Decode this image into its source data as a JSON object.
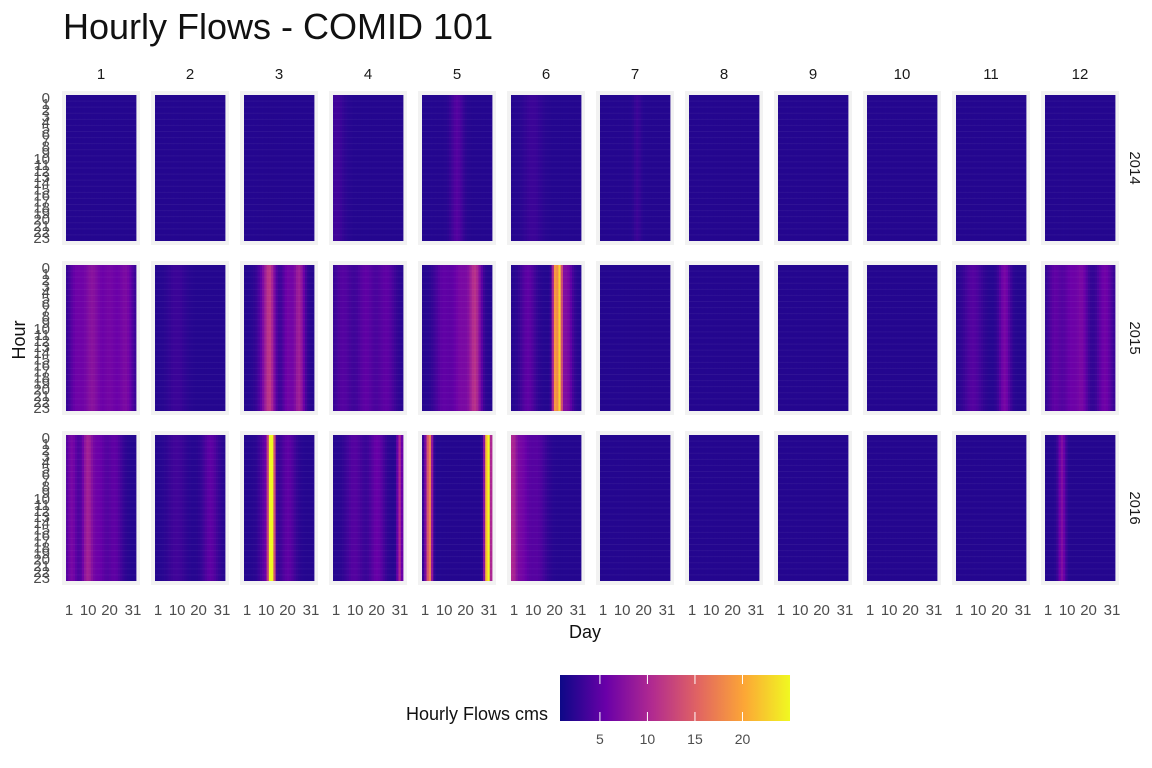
{
  "chart_data": {
    "type": "heatmap",
    "title": "Hourly Flows - COMID 101",
    "xlabel": "Day",
    "ylabel": "Hour",
    "facet_columns": [
      "1",
      "2",
      "3",
      "4",
      "5",
      "6",
      "7",
      "8",
      "9",
      "10",
      "11",
      "12"
    ],
    "facet_rows": [
      "2014",
      "2015",
      "2016"
    ],
    "x_ticks": [
      "1",
      "10",
      "20",
      "31"
    ],
    "x_range": [
      1,
      31
    ],
    "y_ticks": [
      "0",
      "1",
      "2",
      "3",
      "4",
      "5",
      "6",
      "7",
      "8",
      "9",
      "10",
      "11",
      "12",
      "13",
      "14",
      "15",
      "16",
      "17",
      "18",
      "19",
      "20",
      "21",
      "22",
      "23"
    ],
    "y_range": [
      0,
      23
    ],
    "legend_title": "Hourly Flows cms",
    "legend_ticks": [
      5,
      10,
      15,
      20
    ],
    "color_range": [
      0.8,
      25
    ],
    "colormap": [
      "#0d0887",
      "#6a00a8",
      "#b12a90",
      "#e16462",
      "#fca636",
      "#f0f921"
    ],
    "baseline_flow": 2.0,
    "cells": [
      {
        "year": "2014",
        "month": "4",
        "peaks": [
          [
            2,
            3.5,
            2.5
          ]
        ]
      },
      {
        "year": "2014",
        "month": "5",
        "peaks": [
          [
            16,
            4.5,
            2.0
          ]
        ]
      },
      {
        "year": "2014",
        "month": "6",
        "peaks": [
          [
            10,
            3.2,
            3.0
          ]
        ]
      },
      {
        "year": "2014",
        "month": "7",
        "peaks": [
          [
            17,
            3.2,
            1.2
          ]
        ]
      },
      {
        "year": "2015",
        "month": "1",
        "peaks": [
          [
            5,
            5.5,
            2.5
          ],
          [
            12,
            7.5,
            3.0
          ],
          [
            20,
            6.0,
            3.0
          ],
          [
            27,
            6.5,
            2.5
          ]
        ]
      },
      {
        "year": "2015",
        "month": "2",
        "peaks": [
          [
            10,
            3.2,
            3.0
          ]
        ]
      },
      {
        "year": "2015",
        "month": "3",
        "peaks": [
          [
            10,
            5.5,
            2.5
          ],
          [
            12,
            9.0,
            1.8
          ],
          [
            20,
            6.0,
            2.0
          ],
          [
            25,
            9.0,
            1.8
          ]
        ]
      },
      {
        "year": "2015",
        "month": "4",
        "peaks": [
          [
            5,
            4.5,
            3.0
          ],
          [
            15,
            5.0,
            3.0
          ],
          [
            24,
            5.0,
            3.0
          ]
        ]
      },
      {
        "year": "2015",
        "month": "5",
        "peaks": [
          [
            10,
            5.0,
            3.0
          ],
          [
            18,
            6.5,
            3.0
          ],
          [
            24,
            10.5,
            2.0
          ]
        ]
      },
      {
        "year": "2015",
        "month": "6",
        "peaks": [
          [
            8,
            5.0,
            2.5
          ],
          [
            20,
            18.0,
            0.8
          ],
          [
            22,
            20.0,
            0.8
          ],
          [
            25,
            7.0,
            2.0
          ]
        ]
      },
      {
        "year": "2015",
        "month": "11",
        "peaks": [
          [
            8,
            4.5,
            3.0
          ],
          [
            22,
            6.5,
            1.8
          ]
        ]
      },
      {
        "year": "2015",
        "month": "12",
        "peaks": [
          [
            5,
            5.0,
            2.5
          ],
          [
            12,
            5.5,
            2.5
          ],
          [
            17,
            6.0,
            2.0
          ],
          [
            27,
            6.0,
            2.5
          ]
        ]
      },
      {
        "year": "2016",
        "month": "1",
        "peaks": [
          [
            3,
            6.5,
            2.0
          ],
          [
            10,
            9.0,
            1.8
          ],
          [
            15,
            5.5,
            2.5
          ],
          [
            22,
            5.0,
            2.5
          ]
        ]
      },
      {
        "year": "2016",
        "month": "2",
        "peaks": [
          [
            10,
            3.5,
            3.0
          ],
          [
            25,
            5.0,
            2.5
          ]
        ]
      },
      {
        "year": "2016",
        "month": "3",
        "peaks": [
          [
            12,
            16.0,
            0.8
          ],
          [
            13,
            24.0,
            0.8
          ],
          [
            10,
            5.0,
            2.0
          ],
          [
            20,
            5.0,
            2.5
          ]
        ]
      },
      {
        "year": "2016",
        "month": "4",
        "peaks": [
          [
            10,
            4.5,
            3.0
          ],
          [
            20,
            5.5,
            2.5
          ],
          [
            30,
            10.0,
            0.8
          ]
        ]
      },
      {
        "year": "2016",
        "month": "5",
        "peaks": [
          [
            3,
            9.0,
            1.0
          ],
          [
            4,
            13.0,
            0.8
          ],
          [
            29,
            14.0,
            0.8
          ],
          [
            30,
            23.0,
            0.7
          ]
        ]
      },
      {
        "year": "2016",
        "month": "6",
        "peaks": [
          [
            1,
            9.0,
            1.5
          ],
          [
            5,
            6.0,
            2.5
          ],
          [
            12,
            4.5,
            3.0
          ]
        ]
      },
      {
        "year": "2016",
        "month": "12",
        "peaks": [
          [
            8,
            7.0,
            1.2
          ]
        ]
      }
    ]
  }
}
